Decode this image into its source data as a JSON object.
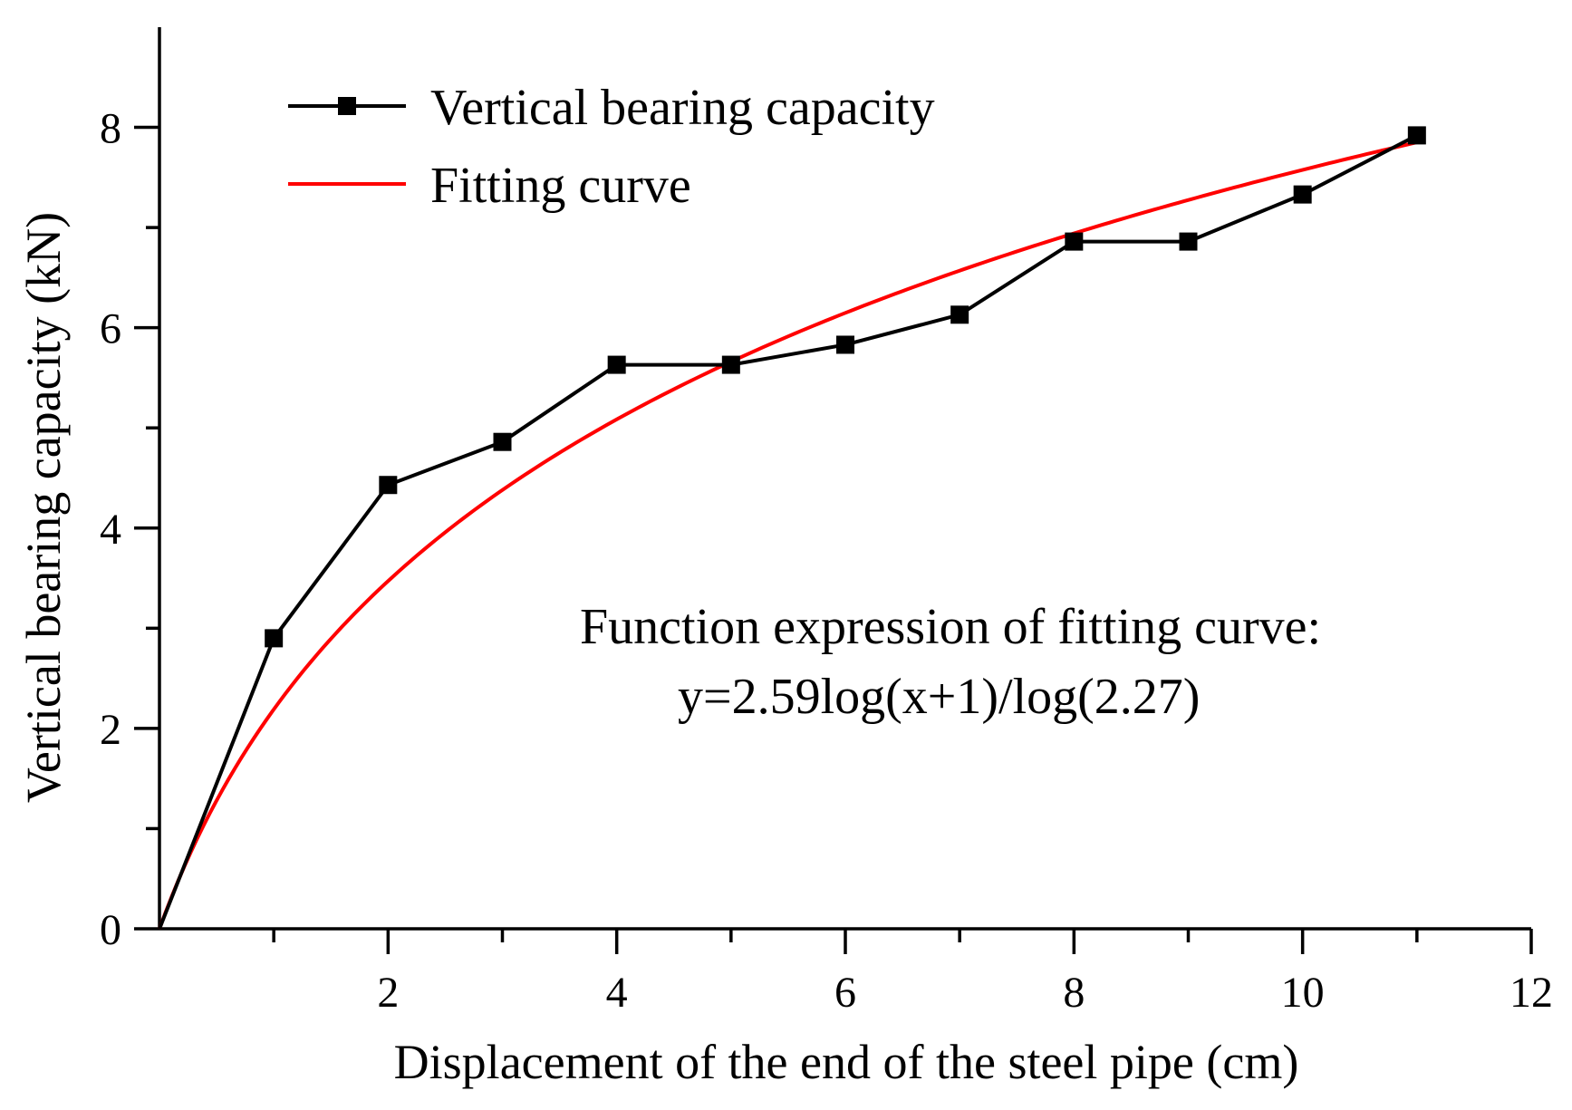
{
  "chart_data": {
    "type": "line",
    "title": "",
    "xlabel": "Displacement of the end of the steel pipe (cm)",
    "ylabel": "Vertical bearing capacity (kN)",
    "xlim": [
      0,
      12
    ],
    "ylim": [
      0,
      9
    ],
    "x_ticks_major": [
      2,
      4,
      6,
      8,
      10,
      12
    ],
    "x_tick_labels": [
      "2",
      "4",
      "6",
      "8",
      "10",
      "12"
    ],
    "x_ticks_minor": [
      1,
      3,
      5,
      7,
      9,
      11
    ],
    "y_ticks_major": [
      0,
      2,
      4,
      6,
      8
    ],
    "y_tick_labels": [
      "0",
      "2",
      "4",
      "6",
      "8"
    ],
    "y_ticks_minor": [
      1,
      3,
      5,
      7
    ],
    "grid": false,
    "legend_position": "top-left",
    "series": [
      {
        "name": "Vertical bearing capacity",
        "color": "#000000",
        "marker": "square",
        "x": [
          0,
          1,
          2,
          3,
          4,
          5,
          6,
          7,
          8,
          9,
          10,
          11
        ],
        "y": [
          0,
          2.9,
          4.43,
          4.86,
          5.63,
          5.63,
          5.83,
          6.13,
          6.86,
          6.86,
          7.33,
          7.92
        ]
      },
      {
        "name": "Fitting curve",
        "color": "#ff0000",
        "marker": "none",
        "function": "y=2.59log(x+1)/log(2.27)",
        "coefficient": 2.59,
        "log_base": 2.27,
        "x_range": [
          0,
          11
        ]
      }
    ],
    "annotations": [
      "Function expression of fitting curve:",
      "y=2.59log(x+1)/log(2.27)"
    ]
  }
}
